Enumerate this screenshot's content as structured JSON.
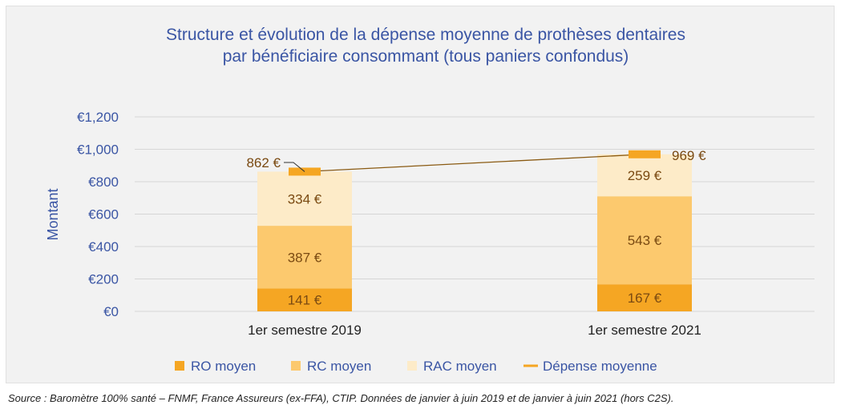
{
  "chart_data": {
    "type": "bar",
    "stacked": true,
    "title": [
      "Structure et évolution de la dépense moyenne de prothèses dentaires",
      "par bénéficiaire consommant (tous paniers confondus)"
    ],
    "ylabel": "Montant",
    "ylim": [
      0,
      1200
    ],
    "yticks": [
      0,
      200,
      400,
      600,
      800,
      1000,
      1200
    ],
    "ytick_labels": [
      "€0",
      "€200",
      "€400",
      "€600",
      "€800",
      "€1,000",
      "€1,200"
    ],
    "categories": [
      "1er semestre 2019",
      "1er semestre 2021"
    ],
    "series": [
      {
        "name": "RO moyen",
        "values": [
          141,
          167
        ],
        "labels": [
          "141 €",
          "167 €"
        ],
        "color": "#f5a623"
      },
      {
        "name": "RC moyen",
        "values": [
          387,
          543
        ],
        "labels": [
          "387 €",
          "543 €"
        ],
        "color": "#fcc96e"
      },
      {
        "name": "RAC moyen",
        "values": [
          334,
          259
        ],
        "labels": [
          "334 €",
          "259 €"
        ],
        "color": "#fdebc8"
      }
    ],
    "line_series": {
      "name": "Dépense moyenne",
      "values": [
        862,
        969
      ],
      "labels": [
        "862 €",
        "969 €"
      ],
      "color": "#8a5a12",
      "marker_color": "#f5a623"
    },
    "legend_position": "bottom",
    "grid": true
  },
  "source": "Source : Baromètre 100% santé – FNMF, France Assureurs (ex-FFA), CTIP. Données de janvier à juin 2019 et de janvier à juin 2021 (hors C2S)."
}
